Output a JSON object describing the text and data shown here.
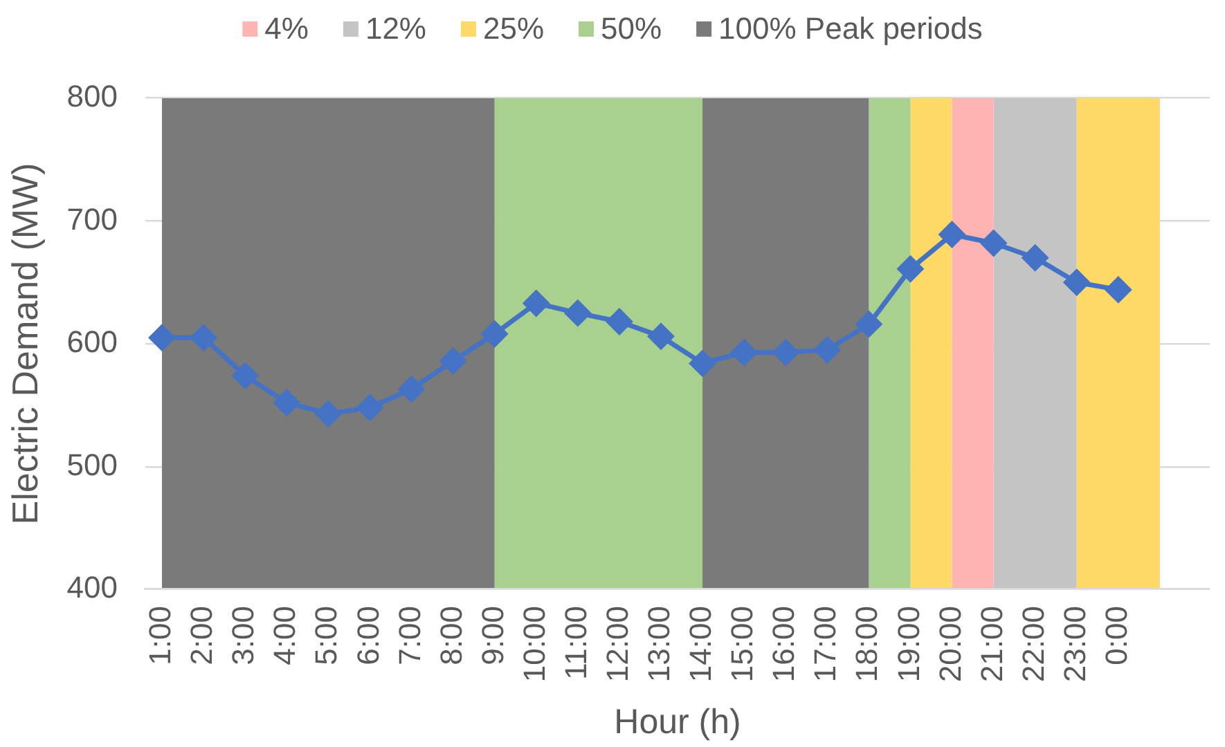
{
  "chart_data": {
    "type": "line",
    "xlabel": "Hour (h)",
    "ylabel": "Electric Demand (MW)",
    "x": [
      1,
      2,
      3,
      4,
      5,
      6,
      7,
      8,
      9,
      10,
      11,
      12,
      13,
      14,
      15,
      16,
      17,
      18,
      19,
      20,
      21,
      22,
      23,
      24
    ],
    "series": [
      {
        "color": "#4472c4",
        "values": [
          605,
          605,
          574,
          552,
          543,
          548,
          563,
          586,
          608,
          633,
          625,
          618,
          606,
          584,
          593,
          593,
          595,
          616,
          661,
          689,
          682,
          670,
          650,
          644
        ]
      }
    ],
    "xlim": [
      0.6,
      26.2
    ],
    "xticks": [
      {
        "value": 1,
        "label": "1:00"
      },
      {
        "value": 2,
        "label": "2:00"
      },
      {
        "value": 3,
        "label": "3:00"
      },
      {
        "value": 4,
        "label": "4:00"
      },
      {
        "value": 5,
        "label": "5:00"
      },
      {
        "value": 6,
        "label": "6:00"
      },
      {
        "value": 7,
        "label": "7:00"
      },
      {
        "value": 8,
        "label": "8:00"
      },
      {
        "value": 9,
        "label": "9:00"
      },
      {
        "value": 10,
        "label": "10:00"
      },
      {
        "value": 11,
        "label": "11:00"
      },
      {
        "value": 12,
        "label": "12:00"
      },
      {
        "value": 13,
        "label": "13:00"
      },
      {
        "value": 14,
        "label": "14:00"
      },
      {
        "value": 15,
        "label": "15:00"
      },
      {
        "value": 16,
        "label": "16:00"
      },
      {
        "value": 17,
        "label": "17:00"
      },
      {
        "value": 18,
        "label": "18:00"
      },
      {
        "value": 19,
        "label": "19:00"
      },
      {
        "value": 20,
        "label": "20:00"
      },
      {
        "value": 21,
        "label": "21:00"
      },
      {
        "value": 22,
        "label": "22:00"
      },
      {
        "value": 23,
        "label": "23:00"
      },
      {
        "value": 24,
        "label": "0:00"
      }
    ],
    "ylim": [
      400,
      800
    ],
    "yticks": [
      400,
      500,
      600,
      700,
      800
    ],
    "bands": [
      {
        "axis": "x",
        "from": 20,
        "to": 21,
        "label": "4%",
        "color": "#ffb3b3"
      },
      {
        "axis": "x",
        "from": 21,
        "to": 23,
        "label": "12%",
        "color": "#c4c4c4"
      },
      {
        "axis": "x",
        "from": 19,
        "to": 20,
        "label": "25%",
        "color": "#ffd966"
      },
      {
        "axis": "x",
        "from": 23,
        "to": 25,
        "color": "#ffd966"
      },
      {
        "axis": "x",
        "from": 9,
        "to": 14,
        "label": "50%",
        "color": "#a9d08e"
      },
      {
        "axis": "x",
        "from": 18,
        "to": 19,
        "color": "#a9d08e"
      },
      {
        "axis": "x",
        "from": 1,
        "to": 9,
        "label": "100% Peak periods",
        "color": "#7a7a7a"
      },
      {
        "axis": "x",
        "from": 14,
        "to": 18,
        "color": "#7a7a7a"
      }
    ],
    "grid": "y",
    "legend": "top",
    "marker": "diamond"
  }
}
